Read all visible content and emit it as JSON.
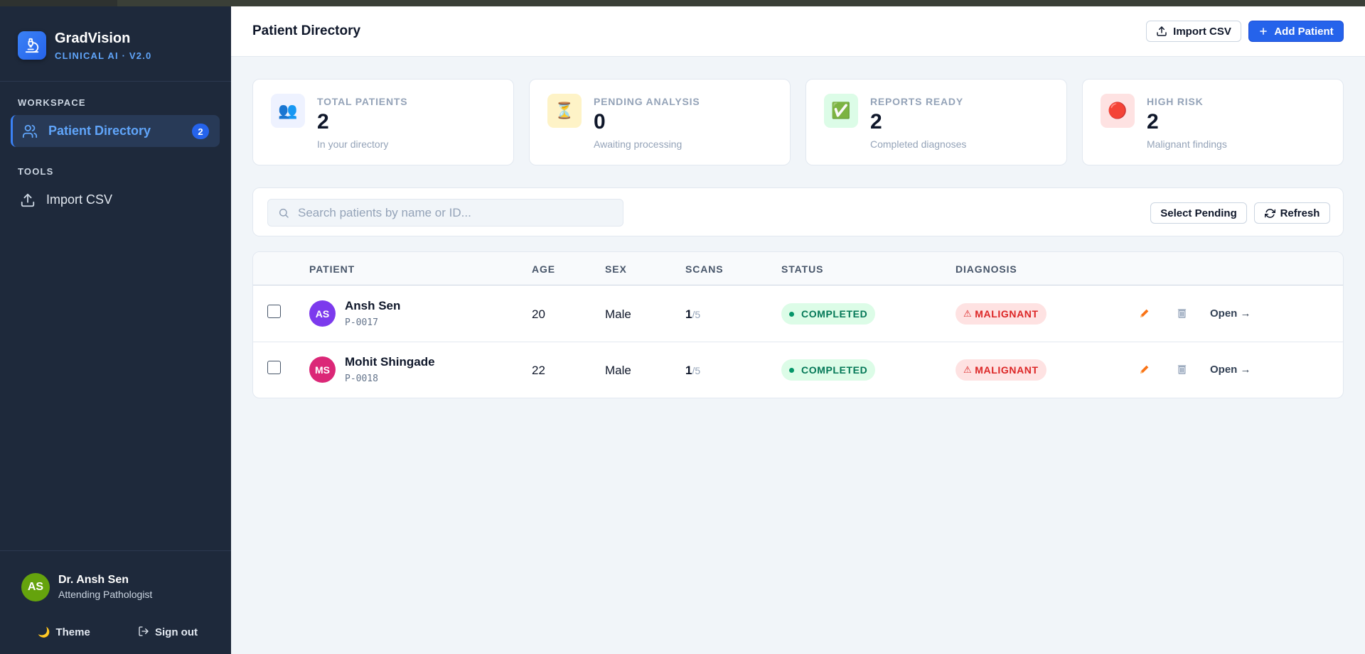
{
  "brand": {
    "name": "GradVision",
    "subtitle": "CLINICAL AI · V2.0"
  },
  "sidebar": {
    "sections": [
      {
        "label": "WORKSPACE",
        "items": [
          {
            "label": "Patient Directory",
            "icon": "users-icon",
            "badge": "2",
            "active": true
          }
        ]
      },
      {
        "label": "TOOLS",
        "items": [
          {
            "label": "Import CSV",
            "icon": "upload-icon"
          }
        ]
      }
    ],
    "user": {
      "initials": "AS",
      "name": "Dr. Ansh Sen",
      "role": "Attending Pathologist"
    },
    "theme_label": "Theme",
    "signout_label": "Sign out"
  },
  "header": {
    "title": "Patient Directory",
    "import_label": "Import CSV",
    "add_label": "Add Patient"
  },
  "stats": [
    {
      "label": "TOTAL PATIENTS",
      "value": "2",
      "sub": "In your directory",
      "icon": "👥",
      "icon_bg": "#eef2ff"
    },
    {
      "label": "PENDING ANALYSIS",
      "value": "0",
      "sub": "Awaiting processing",
      "icon": "⏳",
      "icon_bg": "#fef3c7"
    },
    {
      "label": "REPORTS READY",
      "value": "2",
      "sub": "Completed diagnoses",
      "icon": "✅",
      "icon_bg": "#dcfce7"
    },
    {
      "label": "HIGH RISK",
      "value": "2",
      "sub": "Malignant findings",
      "icon": "🔴",
      "icon_bg": "#fee2e2"
    }
  ],
  "search": {
    "placeholder": "Search patients by name or ID...",
    "value": "",
    "select_pending_label": "Select Pending",
    "refresh_label": "Refresh"
  },
  "table": {
    "columns": [
      "PATIENT",
      "AGE",
      "SEX",
      "SCANS",
      "STATUS",
      "DIAGNOSIS"
    ],
    "rows": [
      {
        "initials": "AS",
        "avatar_color": "#7c3aed",
        "name": "Ansh Sen",
        "id": "P-0017",
        "age": "20",
        "sex": "Male",
        "scans": "1",
        "scans_total": "/5",
        "status": "COMPLETED",
        "diagnosis": "MALIGNANT",
        "open_label": "Open →"
      },
      {
        "initials": "MS",
        "avatar_color": "#db2777",
        "name": "Mohit Shingade",
        "id": "P-0018",
        "age": "22",
        "sex": "Male",
        "scans": "1",
        "scans_total": "/5",
        "status": "COMPLETED",
        "diagnosis": "MALIGNANT",
        "open_label": "Open →"
      }
    ]
  },
  "colors": {
    "accent": "#2563eb",
    "sidebar_bg": "#1e293b",
    "success": "#047857",
    "danger": "#dc2626",
    "edit": "#f97316"
  }
}
